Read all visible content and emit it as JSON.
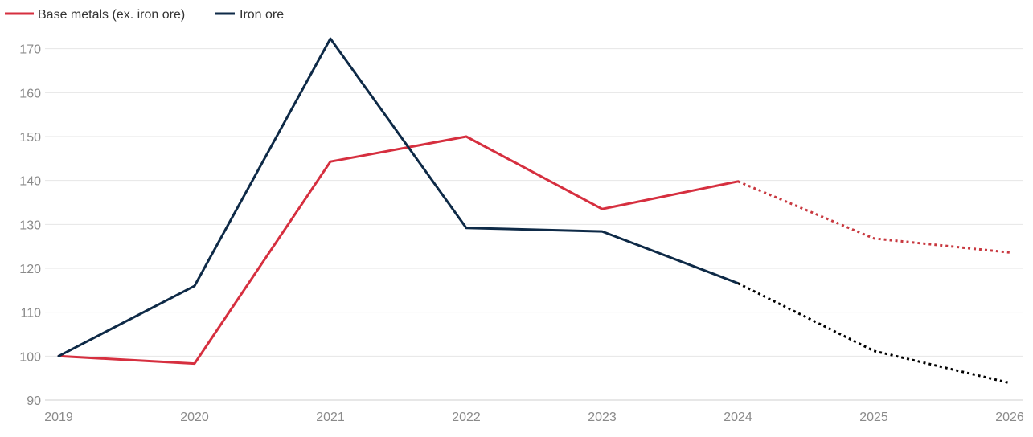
{
  "chart_data": {
    "type": "line",
    "title": "",
    "xlabel": "",
    "ylabel": "",
    "x": [
      "2019",
      "2020",
      "2021",
      "2022",
      "2023",
      "2024",
      "2025",
      "2026"
    ],
    "yticks": [
      "90",
      "100",
      "110",
      "120",
      "130",
      "140",
      "150",
      "160",
      "170"
    ],
    "ylim": [
      90,
      180
    ],
    "grid": true,
    "legend_position": "top-left",
    "forecast_from": "2024",
    "series": [
      {
        "name": "Base metals (ex. iron ore)",
        "color": "#d62f3f",
        "forecast_color": "#c8383f",
        "values": [
          100,
          98.3,
          144.3,
          150,
          133.5,
          139.8,
          126.8,
          123.6
        ]
      },
      {
        "name": "Iron ore",
        "color": "#0e2a47",
        "forecast_color": "#000000",
        "values": [
          100,
          116,
          172.3,
          129.2,
          128.4,
          116.6,
          101.2,
          93.9
        ]
      }
    ]
  }
}
